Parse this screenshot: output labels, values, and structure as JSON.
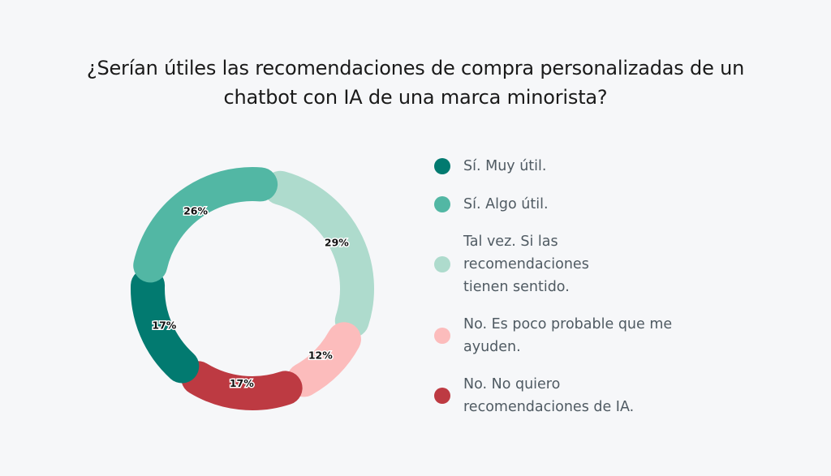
{
  "title": "¿Serían útiles las recomendaciones de compra personalizadas de un chatbot con IA de una marca minorista?",
  "chart_data": {
    "type": "pie",
    "variant": "donut",
    "title": "¿Serían útiles las recomendaciones de compra personalizadas de un chatbot con IA de una marca minorista?",
    "legend_position": "right",
    "slices": [
      {
        "label": "Tal vez. Si las recomendaciones tienen sentido.",
        "value": 29,
        "display": "29%",
        "color": "#aedbcd"
      },
      {
        "label": "No. Es poco probable que me ayuden.",
        "value": 12,
        "display": "12%",
        "color": "#fcbcbc"
      },
      {
        "label": "No. No quiero recomendaciones de IA.",
        "value": 17,
        "display": "17%",
        "color": "#bd3a42"
      },
      {
        "label": "Sí. Muy útil.",
        "value": 17,
        "display": "17%",
        "color": "#027a70"
      },
      {
        "label": "Sí. Algo útil.",
        "value": 26,
        "display": "26%",
        "color": "#52b7a4"
      }
    ]
  },
  "legend": [
    {
      "label": "Sí. Muy útil.",
      "color": "#027a70"
    },
    {
      "label": "Sí. Algo útil.",
      "color": "#52b7a4"
    },
    {
      "label": "Tal vez. Si las recomendaciones tienen sentido.",
      "color": "#aedbcd"
    },
    {
      "label": "No. Es poco probable que me ayuden.",
      "color": "#fcbcbc"
    },
    {
      "label": "No. No quiero recomendaciones de IA.",
      "color": "#bd3a42"
    }
  ]
}
